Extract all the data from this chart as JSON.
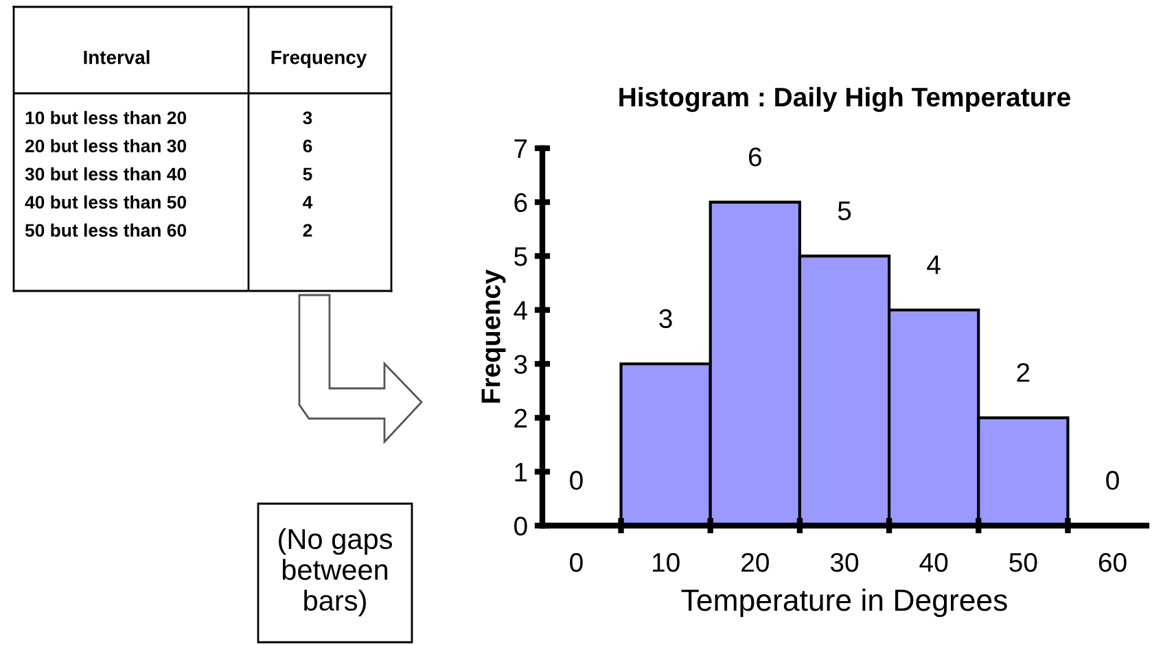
{
  "chart_data": [
    {
      "type": "other",
      "xlabel": "Interval",
      "ylabel": "Frequency",
      "categories": [
        "10 but less than 20",
        "20 but less than 30",
        "30 but less than 40",
        "40 but less than 50",
        "50 but less than 60"
      ],
      "values": [
        3,
        6,
        5,
        4,
        2
      ],
      "data_labels": true
    },
    {
      "type": "bar",
      "title": "Histogram : Daily High Temperature",
      "xlabel": "Temperature in Degrees",
      "ylabel": "Frequency",
      "categories": [
        "0",
        "10",
        "20",
        "30",
        "40",
        "50",
        "60"
      ],
      "values": [
        0,
        3,
        6,
        5,
        4,
        2,
        0
      ],
      "color": "#9999ff",
      "ylim": [
        0,
        7
      ],
      "yticks": [
        0,
        1,
        2,
        3,
        4,
        5,
        6,
        7
      ],
      "grid": false,
      "data_labels": true,
      "annotations": [
        "(No gaps\nbetween\nbars)"
      ]
    }
  ]
}
